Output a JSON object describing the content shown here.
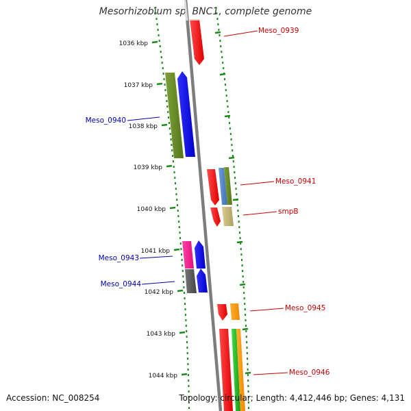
{
  "title": "Mesorhizobium sp. BNC1, complete genome",
  "footer": {
    "accession": "Accession: NC_008254",
    "summary": "Topology: circular; Length: 4,412,446 bp; Genes: 4,131"
  },
  "ticks": [
    "1036 kbp",
    "1037 kbp",
    "1038 kbp",
    "1039 kbp",
    "1040 kbp",
    "1041 kbp",
    "1042 kbp",
    "1043 kbp",
    "1044 kbp"
  ],
  "genes": [
    {
      "name": "Meso_0939",
      "color": "#ff0000",
      "strand": "right"
    },
    {
      "name": "Meso_0940",
      "color": "#0000cc",
      "strand": "left"
    },
    {
      "name": "Meso_0941",
      "color": "#cc0000",
      "strand": "right"
    },
    {
      "name": "smpB",
      "color": "#cc0000",
      "strand": "right"
    },
    {
      "name": "Meso_0943",
      "color": "#0000cc",
      "strand": "left"
    },
    {
      "name": "Meso_0944",
      "color": "#0000cc",
      "strand": "left"
    },
    {
      "name": "Meso_0945",
      "color": "#cc0000",
      "strand": "right"
    },
    {
      "name": "Meso_0946",
      "color": "#cc0000",
      "strand": "right"
    }
  ],
  "colors": {
    "backbone": "#888888",
    "dots": "#1a8a1a",
    "red": "#ff0000",
    "blue": "#0000ee",
    "olive": "#6b8e23",
    "steelblue": "#4f7fbf",
    "khaki": "#c8b87a",
    "pink": "#ff1493",
    "gray": "#555555",
    "orange": "#ff9900",
    "green": "#22bb22"
  }
}
